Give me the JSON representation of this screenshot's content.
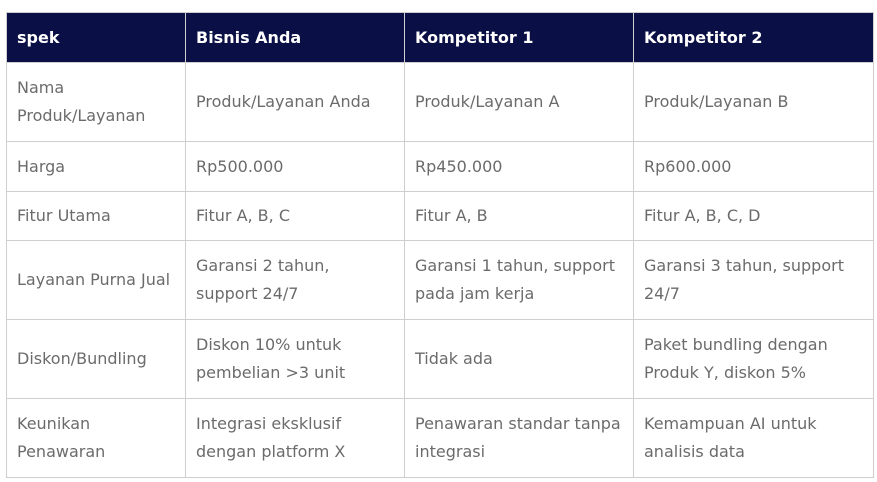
{
  "header_color": "#0a0f45",
  "columns": [
    "spek",
    "Bisnis Anda",
    "Kompetitor 1",
    "Kompetitor 2"
  ],
  "rows": [
    [
      "Nama Produk/Layanan",
      "Produk/Layanan Anda",
      "Produk/Layanan A",
      "Produk/Layanan B"
    ],
    [
      "Harga",
      "Rp500.000",
      "Rp450.000",
      "Rp600.000"
    ],
    [
      "Fitur Utama",
      "Fitur A, B, C",
      "Fitur A, B",
      "Fitur A, B, C, D"
    ],
    [
      "Layanan Purna Jual",
      "Garansi 2 tahun, support 24/7",
      "Garansi 1 tahun, support pada jam kerja",
      "Garansi 3 tahun, support 24/7"
    ],
    [
      "Diskon/Bundling",
      "Diskon 10% untuk pembelian >3 unit",
      "Tidak ada",
      "Paket bundling dengan Produk Y, diskon 5%"
    ],
    [
      "Keunikan Penawaran",
      "Integrasi eksklusif dengan platform X",
      "Penawaran standar tanpa integrasi",
      "Kemampuan AI untuk analisis data"
    ]
  ]
}
